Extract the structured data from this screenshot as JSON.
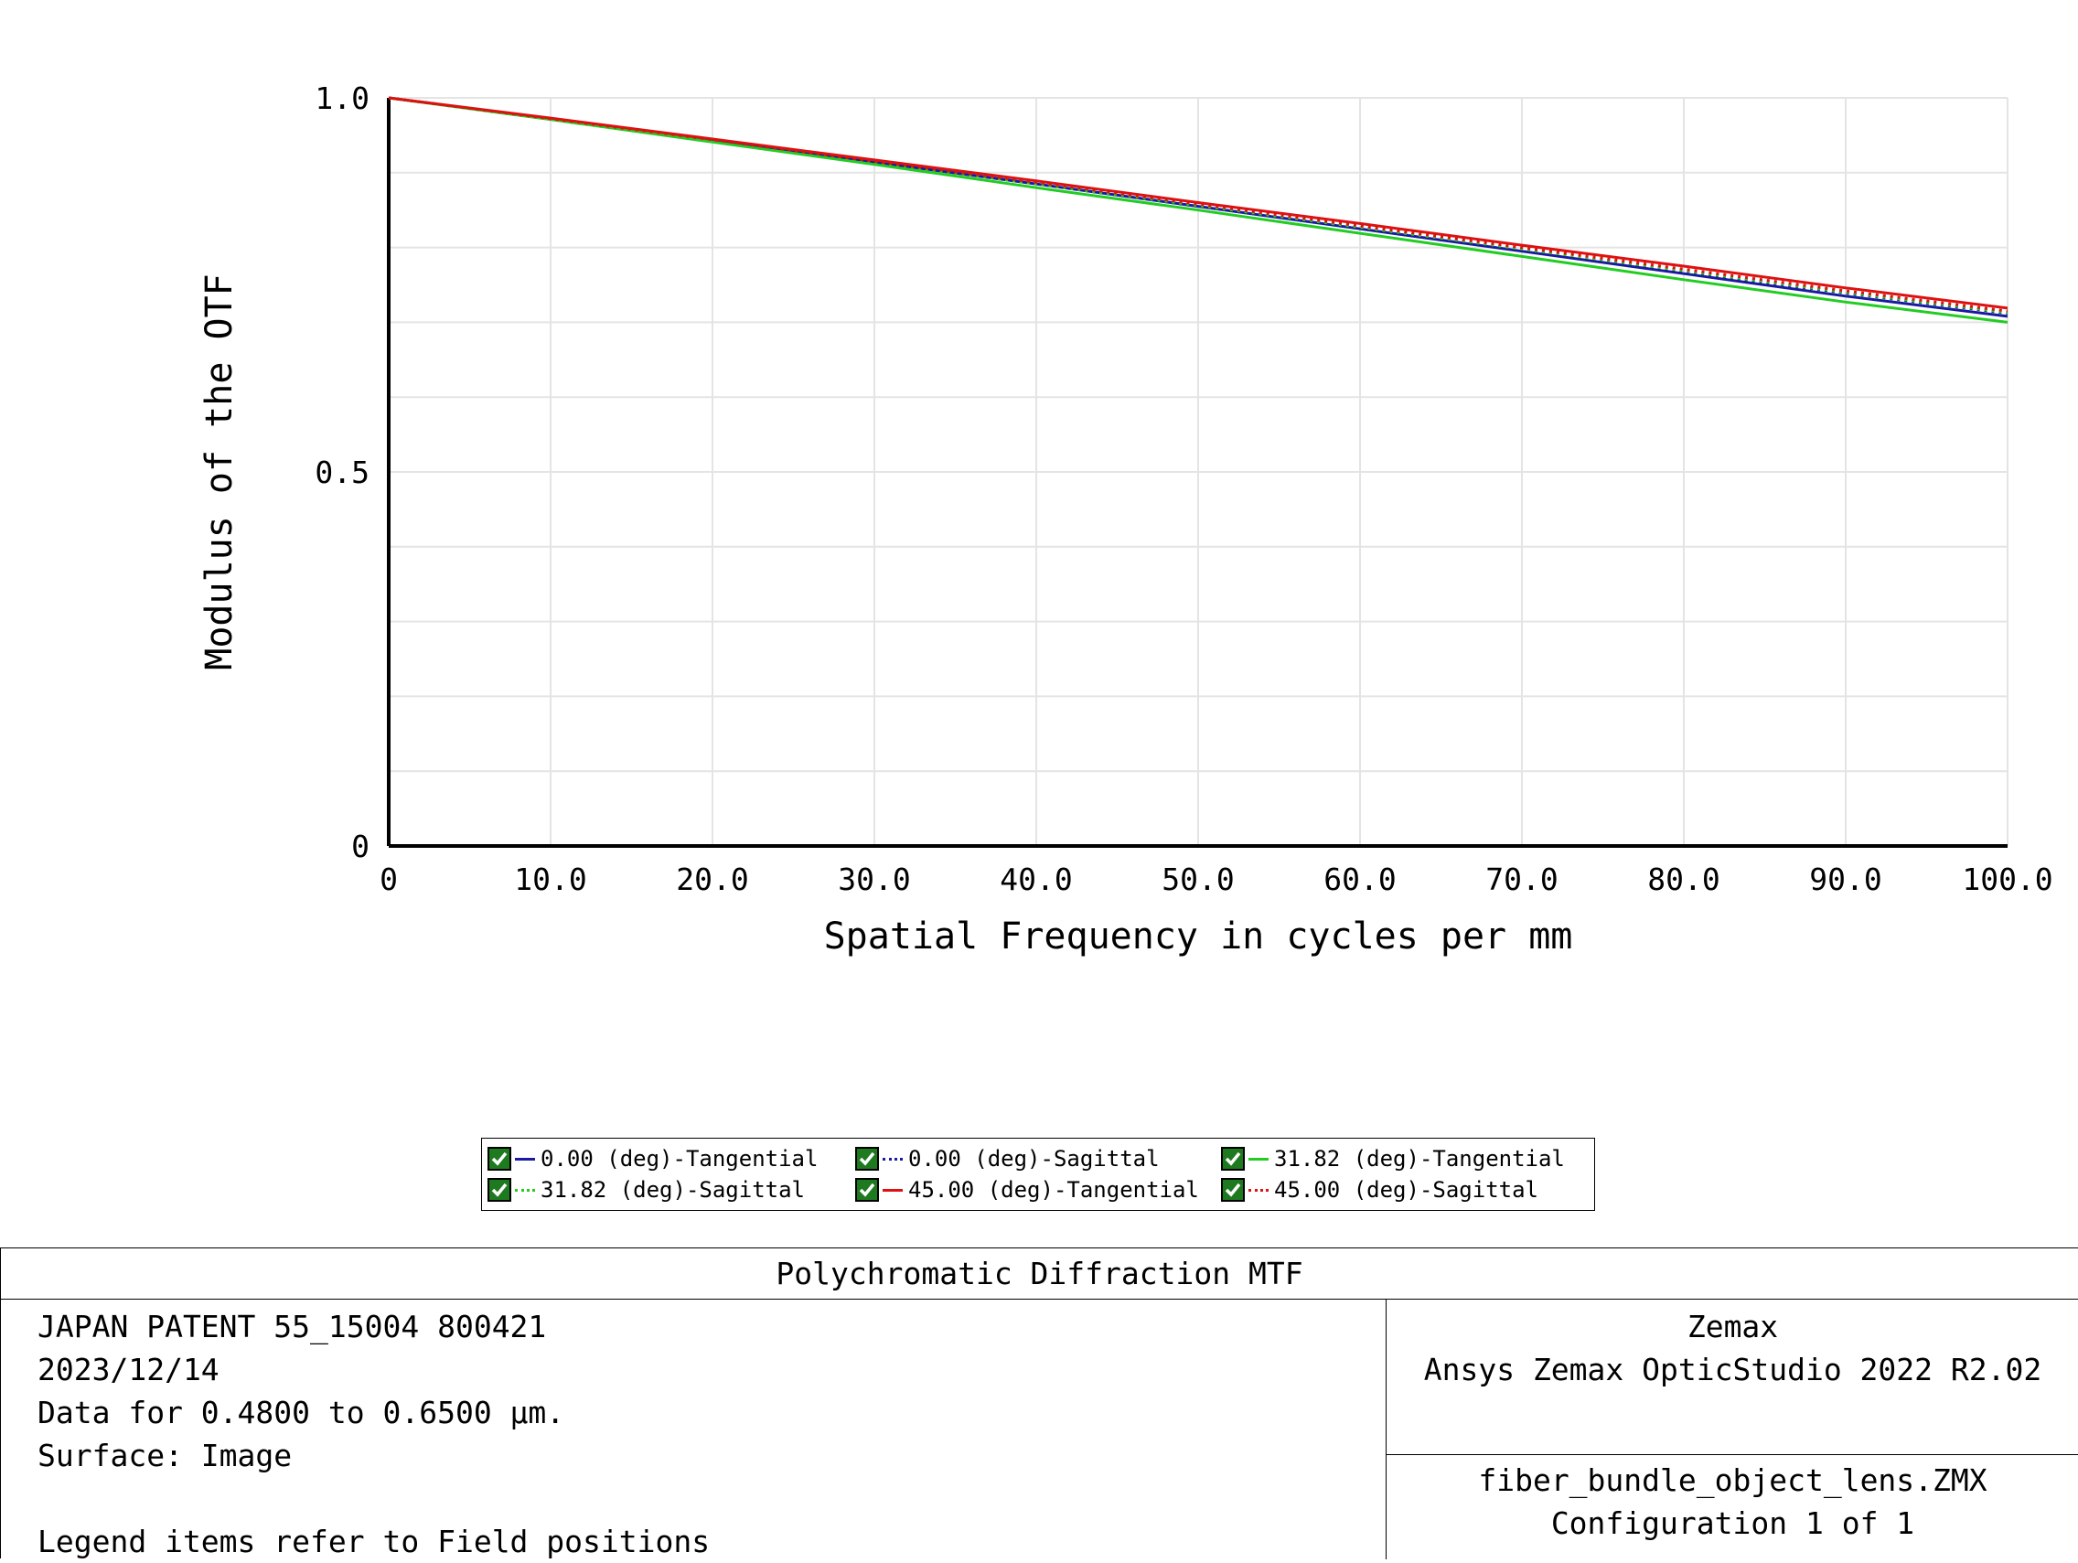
{
  "chart_data": {
    "type": "line",
    "xlabel": "Spatial Frequency in cycles per mm",
    "ylabel": "Modulus of the OTF",
    "xlim": [
      0,
      100
    ],
    "ylim": [
      0,
      1.0
    ],
    "x_ticks": [
      "0",
      "10.0",
      "20.0",
      "30.0",
      "40.0",
      "50.0",
      "60.0",
      "70.0",
      "80.0",
      "90.0",
      "100.0"
    ],
    "y_ticks": [
      "0",
      "0.5",
      "1.0"
    ],
    "grid": true,
    "legend_placement": "bottom-center",
    "x": [
      0,
      10,
      20,
      30,
      40,
      50,
      60,
      70,
      80,
      90,
      100
    ],
    "series": [
      {
        "name": "0.00 (deg)-Tangential",
        "color": "#1a1aa0",
        "style": "solid",
        "values": [
          1.0,
          0.972,
          0.943,
          0.914,
          0.885,
          0.855,
          0.825,
          0.795,
          0.765,
          0.735,
          0.708
        ]
      },
      {
        "name": "0.00 (deg)-Sagittal",
        "color": "#1a1aa0",
        "style": "dotted",
        "values": [
          1.0,
          0.972,
          0.943,
          0.914,
          0.885,
          0.855,
          0.826,
          0.797,
          0.768,
          0.739,
          0.712
        ]
      },
      {
        "name": "31.82 (deg)-Tangential",
        "color": "#22cc22",
        "style": "solid",
        "values": [
          1.0,
          0.971,
          0.941,
          0.911,
          0.88,
          0.85,
          0.819,
          0.788,
          0.757,
          0.727,
          0.7
        ]
      },
      {
        "name": "31.82 (deg)-Sagittal",
        "color": "#22cc22",
        "style": "dotted",
        "values": [
          1.0,
          0.972,
          0.943,
          0.914,
          0.885,
          0.856,
          0.827,
          0.798,
          0.769,
          0.74,
          0.713
        ]
      },
      {
        "name": "45.00 (deg)-Tangential",
        "color": "#dd1111",
        "style": "solid",
        "values": [
          1.0,
          0.973,
          0.945,
          0.917,
          0.889,
          0.86,
          0.832,
          0.803,
          0.775,
          0.746,
          0.719
        ]
      },
      {
        "name": "45.00 (deg)-Sagittal",
        "color": "#dd1111",
        "style": "dotted",
        "values": [
          1.0,
          0.972,
          0.944,
          0.915,
          0.887,
          0.858,
          0.829,
          0.8,
          0.771,
          0.742,
          0.715
        ]
      }
    ]
  },
  "legend": {
    "items": [
      "0.00 (deg)-Tangential",
      "0.00 (deg)-Sagittal",
      "31.82 (deg)-Tangential",
      "31.82 (deg)-Sagittal",
      "45.00 (deg)-Tangential",
      "45.00 (deg)-Sagittal"
    ]
  },
  "info": {
    "title": "Polychromatic Diffraction MTF",
    "left_lines": [
      "JAPAN PATENT 55_15004 800421",
      "2023/12/14",
      "Data for 0.4800 to 0.6500 µm.",
      "Surface: Image",
      "",
      "Legend items refer to Field positions"
    ],
    "right_top": [
      "Zemax",
      "Ansys Zemax OpticStudio 2022 R2.02"
    ],
    "right_bottom": [
      "fiber_bundle_object_lens.ZMX",
      "Configuration 1 of 1"
    ]
  }
}
